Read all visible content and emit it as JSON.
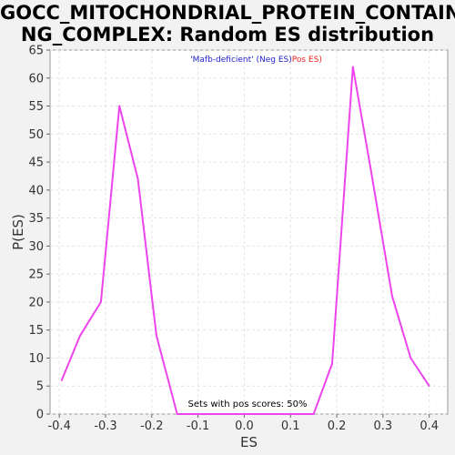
{
  "chart_data": {
    "type": "line",
    "title_lines": [
      "GOCC_MITOCHONDRIAL_PROTEIN_CONTAINI",
      "NG_COMPLEX: Random ES distribution"
    ],
    "xlabel": "ES",
    "ylabel": "P(ES)",
    "xlim": [
      -0.42,
      0.44
    ],
    "ylim": [
      0,
      65
    ],
    "x_ticks": [
      -0.4,
      -0.3,
      -0.2,
      -0.1,
      0.0,
      0.1,
      0.2,
      0.3,
      0.4
    ],
    "x_tick_labels": [
      "-0.4",
      "-0.3",
      "-0.2",
      "-0.1",
      "0.0",
      "0.1",
      "0.2",
      "0.3",
      "0.4"
    ],
    "y_ticks": [
      0,
      5,
      10,
      15,
      20,
      25,
      30,
      35,
      40,
      45,
      50,
      55,
      60,
      65
    ],
    "y_tick_labels": [
      "0",
      "5",
      "10",
      "15",
      "20",
      "25",
      "30",
      "35",
      "40",
      "45",
      "50",
      "55",
      "60",
      "65"
    ],
    "grid": true,
    "legend_placement": "top-center",
    "legend": [
      {
        "label": "'Mafb-deficient' (Neg ES)",
        "color": "#2222cc"
      },
      {
        "label": "Pos ES)",
        "color": "#ee2222"
      }
    ],
    "annotation": "Sets with pos scores: 50%",
    "series": [
      {
        "color": "#ee44ee",
        "x": [
          -0.395,
          -0.355,
          -0.31,
          -0.27,
          -0.23,
          -0.19,
          -0.145,
          -0.1,
          -0.05,
          0.0,
          0.05,
          0.1,
          0.15,
          0.19,
          0.235,
          0.275,
          0.32,
          0.36,
          0.4
        ],
        "y": [
          6,
          14,
          20,
          55,
          42,
          14,
          0,
          0,
          0,
          0,
          0,
          0,
          0,
          9,
          62,
          43,
          21,
          10,
          5
        ]
      }
    ]
  }
}
